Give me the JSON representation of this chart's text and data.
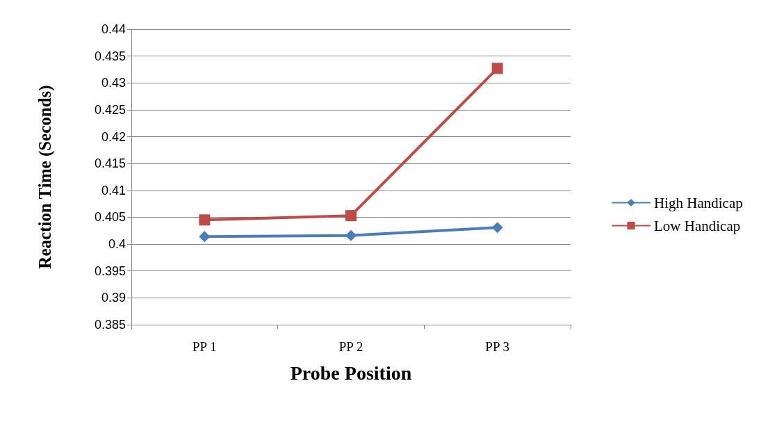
{
  "chart_data": {
    "type": "line",
    "xlabel": "Probe Position",
    "ylabel": "Reaction Time (Seconds)",
    "categories": [
      "PP 1",
      "PP 2",
      "PP 3"
    ],
    "series": [
      {
        "name": "High Handicap",
        "color": "#4a7ebb",
        "marker": "diamond",
        "values": [
          0.4014,
          0.4016,
          0.4031
        ]
      },
      {
        "name": "Low Handicap",
        "color": "#be4b48",
        "marker": "square",
        "values": [
          0.4045,
          0.4053,
          0.4327
        ]
      }
    ],
    "ylim": [
      0.385,
      0.44
    ],
    "yticks": [
      0.385,
      0.39,
      0.395,
      0.4,
      0.405,
      0.41,
      0.415,
      0.42,
      0.425,
      0.43,
      0.435,
      0.44
    ],
    "grid": "y",
    "legend": "right",
    "line_style": "solid"
  }
}
